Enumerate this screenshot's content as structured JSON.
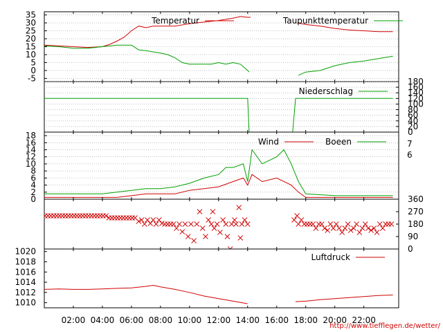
{
  "url_text": "http://www.tiefflegen.de/wetter/",
  "chart_data": [
    {
      "type": "line",
      "panel": "temperature",
      "y_ticks": [
        35,
        30,
        25,
        20,
        15,
        10,
        5,
        0,
        -5
      ],
      "ylim": [
        -7,
        37
      ],
      "series": [
        {
          "name": "Temperatur",
          "color": "#d00000",
          "points": [
            [
              0,
              16
            ],
            [
              1,
              15.5
            ],
            [
              2,
              15
            ],
            [
              3,
              14.5
            ],
            [
              4,
              15
            ],
            [
              4.5,
              16.5
            ],
            [
              5,
              18.5
            ],
            [
              5.5,
              21
            ],
            [
              6,
              25
            ],
            [
              6.5,
              28
            ],
            [
              7,
              27
            ],
            [
              7.5,
              28
            ],
            [
              8,
              28
            ],
            [
              9,
              28
            ],
            [
              10,
              29.5
            ],
            [
              11,
              30.5
            ],
            [
              12,
              31.5
            ],
            [
              13,
              33
            ],
            [
              13.5,
              34
            ],
            [
              14,
              33.5
            ],
            [
              14.2,
              33.5
            ],
            null,
            [
              17.4,
              30
            ],
            [
              18,
              29
            ],
            [
              19,
              28
            ],
            [
              20,
              26.5
            ],
            [
              21,
              25.5
            ],
            [
              22,
              25
            ],
            [
              23,
              24.5
            ],
            [
              24,
              24.5
            ]
          ]
        },
        {
          "name": "Taupunkttemperatur",
          "color": "#00a000",
          "points": [
            [
              0,
              15.5
            ],
            [
              1,
              15
            ],
            [
              2,
              14
            ],
            [
              3,
              14
            ],
            [
              4,
              15
            ],
            [
              5,
              16
            ],
            [
              6,
              16
            ],
            [
              6.5,
              13
            ],
            [
              7,
              12.5
            ],
            [
              8,
              11
            ],
            [
              8.5,
              10
            ],
            [
              9,
              8
            ],
            [
              9.5,
              5
            ],
            [
              10,
              4
            ],
            [
              11,
              4
            ],
            [
              11.5,
              4
            ],
            [
              12,
              5
            ],
            [
              12.5,
              4
            ],
            [
              13,
              5
            ],
            [
              13.5,
              4
            ],
            [
              14,
              0
            ],
            [
              14.1,
              -1
            ],
            null,
            [
              17.5,
              -3
            ],
            [
              18,
              -1
            ],
            [
              19,
              0
            ],
            [
              20,
              3
            ],
            [
              21,
              5
            ],
            [
              22,
              6
            ],
            [
              23,
              7.5
            ],
            [
              24,
              9
            ]
          ]
        }
      ]
    },
    {
      "type": "line",
      "panel": "precipitation",
      "y_ticks": [
        180,
        160,
        140,
        120,
        100,
        80,
        60,
        40,
        20,
        0
      ],
      "ylim": [
        0,
        180
      ],
      "series": [
        {
          "name": "Niederschlag",
          "color": "#00a000",
          "points": [
            [
              0,
              120
            ],
            [
              14,
              120
            ],
            [
              14.1,
              0
            ],
            [
              17.1,
              0
            ],
            [
              17.3,
              120
            ],
            [
              24,
              120
            ]
          ]
        }
      ]
    },
    {
      "type": "line",
      "panel": "wind",
      "y_ticks": [
        18,
        16,
        14,
        12,
        10,
        8,
        6,
        4,
        2,
        0
      ],
      "y2_ticks": [
        7,
        6
      ],
      "ylim": [
        0,
        19
      ],
      "series": [
        {
          "name": "Wind",
          "color": "#d00000",
          "points": [
            [
              0,
              0.5
            ],
            [
              2,
              0.5
            ],
            [
              4,
              0.5
            ],
            [
              5,
              0.5
            ],
            [
              6,
              1
            ],
            [
              7,
              1.5
            ],
            [
              8,
              1.5
            ],
            [
              9,
              1.5
            ],
            [
              10,
              2.5
            ],
            [
              11,
              3
            ],
            [
              12,
              3.5
            ],
            [
              13,
              5
            ],
            [
              13.7,
              6
            ],
            [
              14,
              4
            ],
            [
              14.3,
              7
            ],
            [
              15,
              5
            ],
            [
              16,
              6
            ],
            [
              17,
              4
            ],
            [
              17.5,
              2
            ],
            [
              18,
              0.5
            ],
            [
              20,
              0.5
            ],
            [
              22,
              0.5
            ],
            [
              24,
              0.5
            ]
          ]
        },
        {
          "name": "Boeen",
          "color": "#00a000",
          "points": [
            [
              0,
              1.5
            ],
            [
              2,
              1.5
            ],
            [
              4,
              1.5
            ],
            [
              5,
              2
            ],
            [
              6,
              2.5
            ],
            [
              7,
              3
            ],
            [
              8,
              3
            ],
            [
              9,
              3.5
            ],
            [
              10,
              4.5
            ],
            [
              11,
              6
            ],
            [
              12,
              7
            ],
            [
              12.5,
              9
            ],
            [
              13,
              9
            ],
            [
              13.7,
              10
            ],
            [
              14,
              5
            ],
            [
              14.3,
              14
            ],
            [
              15,
              10
            ],
            [
              16,
              12
            ],
            [
              16.5,
              14
            ],
            [
              17,
              10
            ],
            [
              17.5,
              5
            ],
            [
              18,
              1.5
            ],
            [
              20,
              1
            ],
            [
              22,
              1
            ],
            [
              24,
              1
            ]
          ]
        }
      ]
    },
    {
      "type": "scatter",
      "panel": "wind_direction",
      "y_ticks": [
        360,
        270,
        180,
        90,
        0
      ],
      "ylim": [
        0,
        360
      ],
      "series": [
        {
          "color": "#d00000",
          "points": [
            [
              0.05,
              240
            ],
            [
              0.25,
              240
            ],
            [
              0.45,
              240
            ],
            [
              0.65,
              240
            ],
            [
              0.85,
              240
            ],
            [
              1.05,
              240
            ],
            [
              1.25,
              240
            ],
            [
              1.45,
              240
            ],
            [
              1.65,
              240
            ],
            [
              1.85,
              240
            ],
            [
              2.05,
              240
            ],
            [
              2.25,
              240
            ],
            [
              2.45,
              240
            ],
            [
              2.65,
              240
            ],
            [
              2.85,
              240
            ],
            [
              3.05,
              240
            ],
            [
              3.25,
              240
            ],
            [
              3.45,
              240
            ],
            [
              3.65,
              240
            ],
            [
              3.85,
              240
            ],
            [
              4.05,
              240
            ],
            [
              4.25,
              240
            ],
            [
              4.45,
              225
            ],
            [
              4.65,
              225
            ],
            [
              4.85,
              225
            ],
            [
              5.05,
              225
            ],
            [
              5.25,
              225
            ],
            [
              5.45,
              225
            ],
            [
              5.65,
              225
            ],
            [
              5.85,
              225
            ],
            [
              6.05,
              225
            ],
            [
              6.25,
              225
            ],
            [
              6.5,
              200
            ],
            [
              6.7,
              210
            ],
            [
              6.9,
              180
            ],
            [
              7.1,
              210
            ],
            [
              7.3,
              185
            ],
            [
              7.5,
              210
            ],
            [
              7.7,
              180
            ],
            [
              7.9,
              210
            ],
            [
              8.1,
              185
            ],
            [
              8.3,
              180
            ],
            [
              8.5,
              180
            ],
            [
              8.7,
              180
            ],
            [
              8.9,
              180
            ],
            [
              9.1,
              150
            ],
            [
              9.3,
              180
            ],
            [
              9.5,
              125
            ],
            [
              9.7,
              180
            ],
            [
              9.9,
              90
            ],
            [
              10.1,
              180
            ],
            [
              10.3,
              60
            ],
            [
              10.5,
              180
            ],
            [
              10.7,
              270
            ],
            [
              10.9,
              150
            ],
            [
              11.1,
              90
            ],
            [
              11.3,
              210
            ],
            [
              11.5,
              180
            ],
            [
              11.6,
              270
            ],
            [
              11.7,
              150
            ],
            [
              11.9,
              180
            ],
            [
              12.1,
              120
            ],
            [
              12.3,
              210
            ],
            [
              12.5,
              180
            ],
            [
              12.6,
              90
            ],
            [
              12.8,
              0
            ],
            [
              12.9,
              180
            ],
            [
              13.1,
              210
            ],
            [
              13.2,
              180
            ],
            [
              13.4,
              300
            ],
            [
              13.5,
              80
            ],
            [
              13.6,
              180
            ],
            [
              13.8,
              210
            ],
            [
              14,
              180
            ],
            [
              17.2,
              210
            ],
            [
              17.4,
              240
            ],
            [
              17.5,
              180
            ],
            [
              17.7,
              210
            ],
            [
              17.9,
              180
            ],
            [
              18.1,
              180
            ],
            [
              18.3,
              180
            ],
            [
              18.5,
              180
            ],
            [
              18.7,
              150
            ],
            [
              18.9,
              180
            ],
            [
              19.1,
              180
            ],
            [
              19.3,
              150
            ],
            [
              19.5,
              135
            ],
            [
              19.7,
              180
            ],
            [
              19.9,
              150
            ],
            [
              20.1,
              180
            ],
            [
              20.3,
              150
            ],
            [
              20.5,
              120
            ],
            [
              20.7,
              150
            ],
            [
              20.9,
              180
            ],
            [
              21.1,
              135
            ],
            [
              21.3,
              150
            ],
            [
              21.5,
              180
            ],
            [
              21.7,
              120
            ],
            [
              21.9,
              150
            ],
            [
              22.1,
              180
            ],
            [
              22.3,
              150
            ],
            [
              22.5,
              135
            ],
            [
              22.7,
              150
            ],
            [
              22.9,
              120
            ],
            [
              23.1,
              180
            ],
            [
              23.3,
              150
            ],
            [
              23.5,
              180
            ],
            [
              23.7,
              180
            ],
            [
              23.9,
              180
            ]
          ]
        }
      ]
    },
    {
      "type": "line",
      "panel": "pressure",
      "y_ticks": [
        1020,
        1018,
        1016,
        1014,
        1012,
        1010
      ],
      "ylim": [
        1009,
        1020.5
      ],
      "series": [
        {
          "name": "Luftdruck",
          "color": "#d00000",
          "points": [
            [
              0,
              1012.6
            ],
            [
              1,
              1012.7
            ],
            [
              2,
              1012.6
            ],
            [
              3,
              1012.6
            ],
            [
              4,
              1012.7
            ],
            [
              5,
              1012.8
            ],
            [
              6,
              1012.9
            ],
            [
              7,
              1013.2
            ],
            [
              7.5,
              1013.4
            ],
            [
              8,
              1013.1
            ],
            [
              9,
              1012.6
            ],
            [
              10,
              1012
            ],
            [
              11,
              1011.3
            ],
            [
              12,
              1010.8
            ],
            [
              13,
              1010.3
            ],
            [
              14,
              1009.8
            ],
            null,
            [
              17.3,
              1010.2
            ],
            [
              18,
              1010.3
            ],
            [
              19,
              1010.6
            ],
            [
              20,
              1010.8
            ],
            [
              21,
              1011
            ],
            [
              22,
              1011.2
            ],
            [
              23,
              1011.4
            ],
            [
              24,
              1011.5
            ]
          ]
        }
      ]
    }
  ],
  "x_ticks": [
    "02:00",
    "04:00",
    "06:00",
    "08:00",
    "10:00",
    "12:00",
    "14:00",
    "16:00",
    "18:00",
    "20:00",
    "22:00"
  ],
  "xlim_hours": [
    0,
    24.4
  ]
}
